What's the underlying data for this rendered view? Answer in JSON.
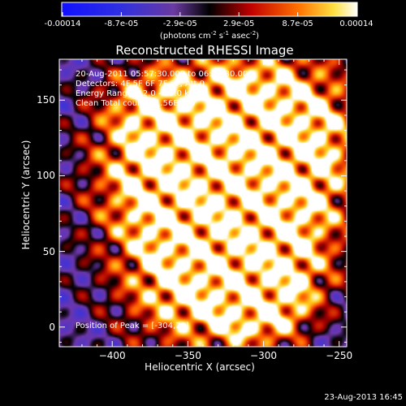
{
  "colorbar": {
    "tick_labels": [
      "-0.00014",
      "-8.7e-05",
      "-2.9e-05",
      "2.9e-05",
      "8.7e-05",
      "0.00014"
    ],
    "units_prefix": "(photons cm",
    "units_exp1": "-2",
    "units_mid": " s",
    "units_exp2": "-1",
    "units_mid2": " asec",
    "units_exp3": "-2",
    "units_suffix": ")",
    "range": [
      -0.00014,
      0.00014
    ]
  },
  "annotations": {
    "time": "20-Aug-2011 05:57:30.000 to 06:03:30.000",
    "detectors": "Detectors: 4F 5F 6F 7F 8F, Att 0",
    "energy": "Energy Range: 12.0 - 25.0 keV",
    "clean": "Clean    Total counts: 1.56E+04",
    "peak": "Position of Peak = [-304,20]"
  },
  "footer": "23-Aug-2013 16:45",
  "chart_data": {
    "type": "heatmap",
    "title": "Reconstructed RHESSI Image",
    "xlabel": "Heliocentric X (arcsec)",
    "ylabel": "Heliocentric Y (arcsec)",
    "xlim": [
      -435,
      -245
    ],
    "ylim": [
      -13,
      177
    ],
    "x_ticks": [
      -400,
      -350,
      -300,
      -250
    ],
    "x_tick_labels": [
      "−400",
      "−350",
      "−300",
      "−250"
    ],
    "y_ticks": [
      0,
      50,
      100,
      150
    ],
    "y_tick_labels": [
      "0",
      "50",
      "100",
      "150"
    ],
    "peak_position": [
      -304,
      20
    ],
    "colormap": "blue-purple-black-red-yellow-white",
    "grid": false
  }
}
